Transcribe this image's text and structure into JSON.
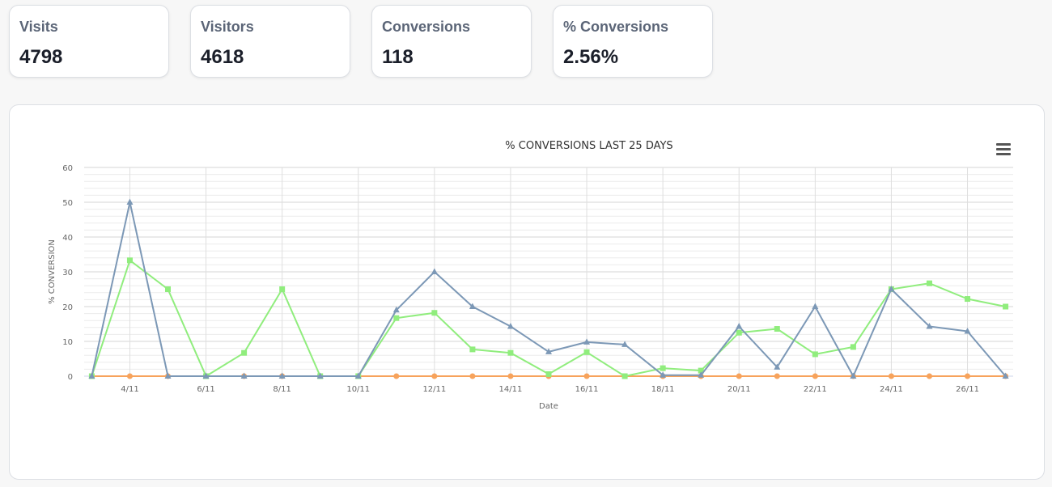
{
  "kpis": [
    {
      "label": "Visits",
      "value": "4798"
    },
    {
      "label": "Visitors",
      "value": "4618"
    },
    {
      "label": "Conversions",
      "value": "118"
    },
    {
      "label": "% Conversions",
      "value": "2.56%"
    }
  ],
  "chart_data": {
    "type": "line",
    "title": "% CONVERSIONS LAST 25 DAYS",
    "xlabel": "Date",
    "ylabel": "% CONVERSION",
    "ylim": [
      0,
      60
    ],
    "yticks": [
      0,
      10,
      20,
      30,
      40,
      50,
      60
    ],
    "grid": true,
    "legend": "none",
    "x": [
      "3/11",
      "4/11",
      "5/11",
      "6/11",
      "7/11",
      "8/11",
      "9/11",
      "10/11",
      "11/11",
      "12/11",
      "13/11",
      "14/11",
      "15/11",
      "16/11",
      "17/11",
      "18/11",
      "19/11",
      "20/11",
      "21/11",
      "22/11",
      "23/11",
      "24/11",
      "25/11",
      "26/11",
      "27/11"
    ],
    "xtick_labels": [
      "4/11",
      "6/11",
      "8/11",
      "10/11",
      "12/11",
      "14/11",
      "16/11",
      "18/11",
      "20/11",
      "22/11",
      "24/11",
      "26/11"
    ],
    "series": [
      {
        "color": "#7c98b6",
        "marker": "triangle",
        "values": [
          0,
          50,
          0,
          0,
          0,
          0,
          0,
          0,
          19,
          30,
          20,
          14.3,
          7,
          9.8,
          9.1,
          0.3,
          0.3,
          14.3,
          2.6,
          20,
          0,
          25,
          14.3,
          12.9,
          0
        ]
      },
      {
        "color": "#90ed7d",
        "marker": "square",
        "values": [
          0,
          33.3,
          25,
          0,
          6.7,
          25,
          0,
          0,
          16.7,
          18.2,
          7.7,
          6.7,
          0.6,
          6.9,
          0,
          2.3,
          1.6,
          12.5,
          13.6,
          6.3,
          8.4,
          25,
          26.7,
          22.2,
          20
        ]
      },
      {
        "color": "#f7a35c",
        "marker": "circle",
        "values": [
          0,
          0,
          0,
          0,
          0,
          0,
          0,
          0,
          0,
          0,
          0,
          0,
          0,
          0,
          0,
          0,
          0,
          0,
          0,
          0,
          0,
          0,
          0,
          0,
          0
        ]
      }
    ]
  }
}
